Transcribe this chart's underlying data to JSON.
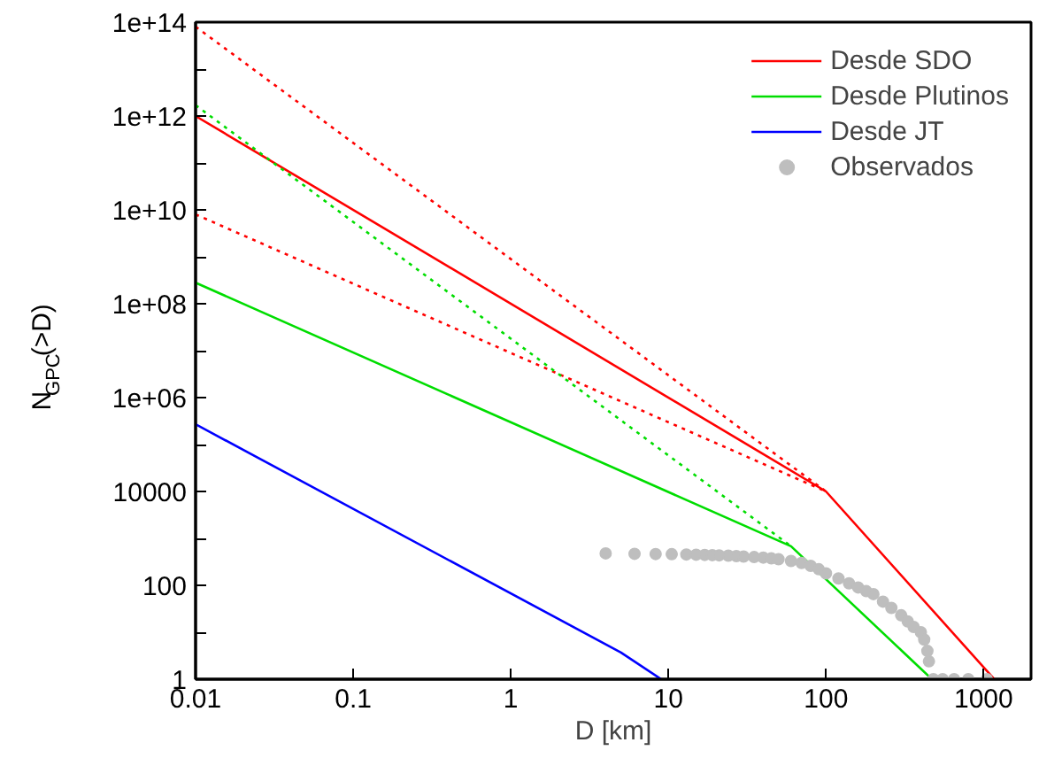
{
  "chart_data": {
    "type": "line",
    "xlabel": "D [km]",
    "ylabel": "N$_{GPC}$(>D)",
    "log": "xy",
    "legend": "top right",
    "grid": false,
    "xlim": [
      0.01,
      2000
    ],
    "ylim": [
      1,
      100000000000000.0
    ],
    "xticks": [
      0.01,
      0.1,
      1,
      10,
      100,
      1000
    ],
    "yticks": [
      1,
      {
        "value": 10,
        "label": null
      },
      100,
      {
        "value": 1000,
        "label": null
      },
      10000,
      {
        "value": 100000,
        "label": null
      },
      {
        "value": 1000000,
        "label": "1e+06"
      },
      {
        "value": 10000000,
        "label": null
      },
      {
        "value": 100000000,
        "label": "1e+08"
      },
      {
        "value": 1000000000,
        "label": null
      },
      {
        "value": 10000000000,
        "label": "1e+10"
      },
      {
        "value": 100000000000,
        "label": null
      },
      {
        "value": 1000000000000,
        "label": "1e+12"
      },
      {
        "value": 10000000000000,
        "label": null
      },
      {
        "value": 100000000000000,
        "label": "1e+14"
      }
    ],
    "series": [
      {
        "name": "Desde SDO",
        "color": "#ff0000",
        "line_style": "solid",
        "x": [
          0.01,
          100,
          1170
        ],
        "values": [
          1000000000000.0,
          10000,
          1
        ]
      },
      {
        "name": "Desde Plutinos",
        "color": "#00dd00",
        "line_style": "solid",
        "x": [
          0.01,
          60,
          470
        ],
        "values": [
          280000000,
          680,
          1
        ]
      },
      {
        "name": "Desde JT",
        "color": "#0000ff",
        "line_style": "solid",
        "x": [
          0.01,
          5,
          9
        ],
        "values": [
          270000,
          3.7,
          1
        ]
      },
      {
        "name": "Observados",
        "type": "scatter",
        "marker": "circle",
        "color": "#bebebe",
        "x": [
          4,
          6.1,
          8.3,
          10.5,
          13,
          15,
          17,
          19,
          21,
          24,
          27,
          30,
          35,
          40,
          45,
          50,
          60,
          70,
          80,
          90,
          100,
          120,
          140,
          160,
          180,
          200,
          230,
          260,
          300,
          330,
          360,
          400,
          420,
          440,
          450,
          480,
          550,
          650,
          800,
          1050
        ],
        "values": [
          480,
          470,
          465,
          460,
          455,
          450,
          445,
          440,
          435,
          430,
          420,
          410,
          400,
          390,
          375,
          360,
          330,
          300,
          260,
          220,
          180,
          140,
          110,
          90,
          75,
          65,
          45,
          33,
          23,
          17,
          13,
          10,
          7,
          4,
          2.4,
          1,
          1,
          1,
          1,
          1
        ]
      },
      {
        "color": "#ff0000",
        "line_style": "dotted",
        "x": [
          0.01,
          100
        ],
        "values": [
          80000000000000,
          10000
        ]
      },
      {
        "color": "#ff0000",
        "line_style": "dotted",
        "x": [
          0.01,
          100
        ],
        "values": [
          8000000000,
          10000
        ]
      },
      {
        "color": "#00dd00",
        "line_style": "dotted",
        "x": [
          0.01,
          60
        ],
        "values": [
          1700000000000,
          680
        ]
      }
    ]
  }
}
